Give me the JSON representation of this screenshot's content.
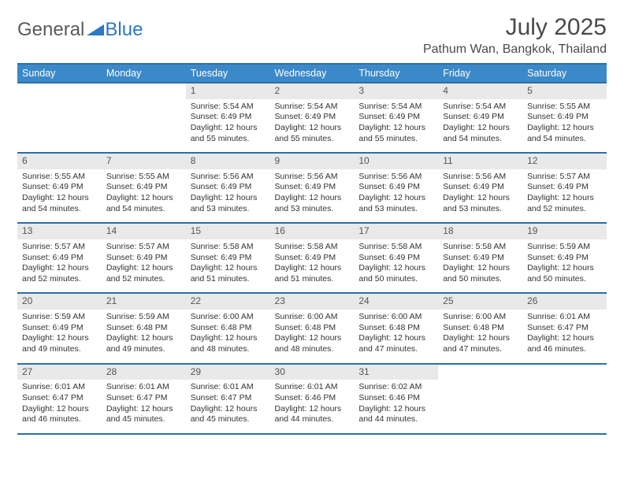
{
  "brand": {
    "part1": "General",
    "part2": "Blue"
  },
  "title": "July 2025",
  "location": "Pathum Wan, Bangkok, Thailand",
  "colors": {
    "header_bg": "#3b89c9",
    "header_border": "#2b6fa8",
    "daynum_bg": "#e9e9e9",
    "text": "#333333",
    "brand_gray": "#5a5a5a",
    "brand_blue": "#2b78c5"
  },
  "weekdays": [
    "Sunday",
    "Monday",
    "Tuesday",
    "Wednesday",
    "Thursday",
    "Friday",
    "Saturday"
  ],
  "first_weekday_index": 2,
  "days": [
    {
      "n": 1,
      "sunrise": "5:54 AM",
      "sunset": "6:49 PM",
      "dl": "12 hours and 55 minutes."
    },
    {
      "n": 2,
      "sunrise": "5:54 AM",
      "sunset": "6:49 PM",
      "dl": "12 hours and 55 minutes."
    },
    {
      "n": 3,
      "sunrise": "5:54 AM",
      "sunset": "6:49 PM",
      "dl": "12 hours and 55 minutes."
    },
    {
      "n": 4,
      "sunrise": "5:54 AM",
      "sunset": "6:49 PM",
      "dl": "12 hours and 54 minutes."
    },
    {
      "n": 5,
      "sunrise": "5:55 AM",
      "sunset": "6:49 PM",
      "dl": "12 hours and 54 minutes."
    },
    {
      "n": 6,
      "sunrise": "5:55 AM",
      "sunset": "6:49 PM",
      "dl": "12 hours and 54 minutes."
    },
    {
      "n": 7,
      "sunrise": "5:55 AM",
      "sunset": "6:49 PM",
      "dl": "12 hours and 54 minutes."
    },
    {
      "n": 8,
      "sunrise": "5:56 AM",
      "sunset": "6:49 PM",
      "dl": "12 hours and 53 minutes."
    },
    {
      "n": 9,
      "sunrise": "5:56 AM",
      "sunset": "6:49 PM",
      "dl": "12 hours and 53 minutes."
    },
    {
      "n": 10,
      "sunrise": "5:56 AM",
      "sunset": "6:49 PM",
      "dl": "12 hours and 53 minutes."
    },
    {
      "n": 11,
      "sunrise": "5:56 AM",
      "sunset": "6:49 PM",
      "dl": "12 hours and 53 minutes."
    },
    {
      "n": 12,
      "sunrise": "5:57 AM",
      "sunset": "6:49 PM",
      "dl": "12 hours and 52 minutes."
    },
    {
      "n": 13,
      "sunrise": "5:57 AM",
      "sunset": "6:49 PM",
      "dl": "12 hours and 52 minutes."
    },
    {
      "n": 14,
      "sunrise": "5:57 AM",
      "sunset": "6:49 PM",
      "dl": "12 hours and 52 minutes."
    },
    {
      "n": 15,
      "sunrise": "5:58 AM",
      "sunset": "6:49 PM",
      "dl": "12 hours and 51 minutes."
    },
    {
      "n": 16,
      "sunrise": "5:58 AM",
      "sunset": "6:49 PM",
      "dl": "12 hours and 51 minutes."
    },
    {
      "n": 17,
      "sunrise": "5:58 AM",
      "sunset": "6:49 PM",
      "dl": "12 hours and 50 minutes."
    },
    {
      "n": 18,
      "sunrise": "5:58 AM",
      "sunset": "6:49 PM",
      "dl": "12 hours and 50 minutes."
    },
    {
      "n": 19,
      "sunrise": "5:59 AM",
      "sunset": "6:49 PM",
      "dl": "12 hours and 50 minutes."
    },
    {
      "n": 20,
      "sunrise": "5:59 AM",
      "sunset": "6:49 PM",
      "dl": "12 hours and 49 minutes."
    },
    {
      "n": 21,
      "sunrise": "5:59 AM",
      "sunset": "6:48 PM",
      "dl": "12 hours and 49 minutes."
    },
    {
      "n": 22,
      "sunrise": "6:00 AM",
      "sunset": "6:48 PM",
      "dl": "12 hours and 48 minutes."
    },
    {
      "n": 23,
      "sunrise": "6:00 AM",
      "sunset": "6:48 PM",
      "dl": "12 hours and 48 minutes."
    },
    {
      "n": 24,
      "sunrise": "6:00 AM",
      "sunset": "6:48 PM",
      "dl": "12 hours and 47 minutes."
    },
    {
      "n": 25,
      "sunrise": "6:00 AM",
      "sunset": "6:48 PM",
      "dl": "12 hours and 47 minutes."
    },
    {
      "n": 26,
      "sunrise": "6:01 AM",
      "sunset": "6:47 PM",
      "dl": "12 hours and 46 minutes."
    },
    {
      "n": 27,
      "sunrise": "6:01 AM",
      "sunset": "6:47 PM",
      "dl": "12 hours and 46 minutes."
    },
    {
      "n": 28,
      "sunrise": "6:01 AM",
      "sunset": "6:47 PM",
      "dl": "12 hours and 45 minutes."
    },
    {
      "n": 29,
      "sunrise": "6:01 AM",
      "sunset": "6:47 PM",
      "dl": "12 hours and 45 minutes."
    },
    {
      "n": 30,
      "sunrise": "6:01 AM",
      "sunset": "6:46 PM",
      "dl": "12 hours and 44 minutes."
    },
    {
      "n": 31,
      "sunrise": "6:02 AM",
      "sunset": "6:46 PM",
      "dl": "12 hours and 44 minutes."
    }
  ],
  "labels": {
    "sunrise": "Sunrise:",
    "sunset": "Sunset:",
    "daylight": "Daylight:"
  }
}
